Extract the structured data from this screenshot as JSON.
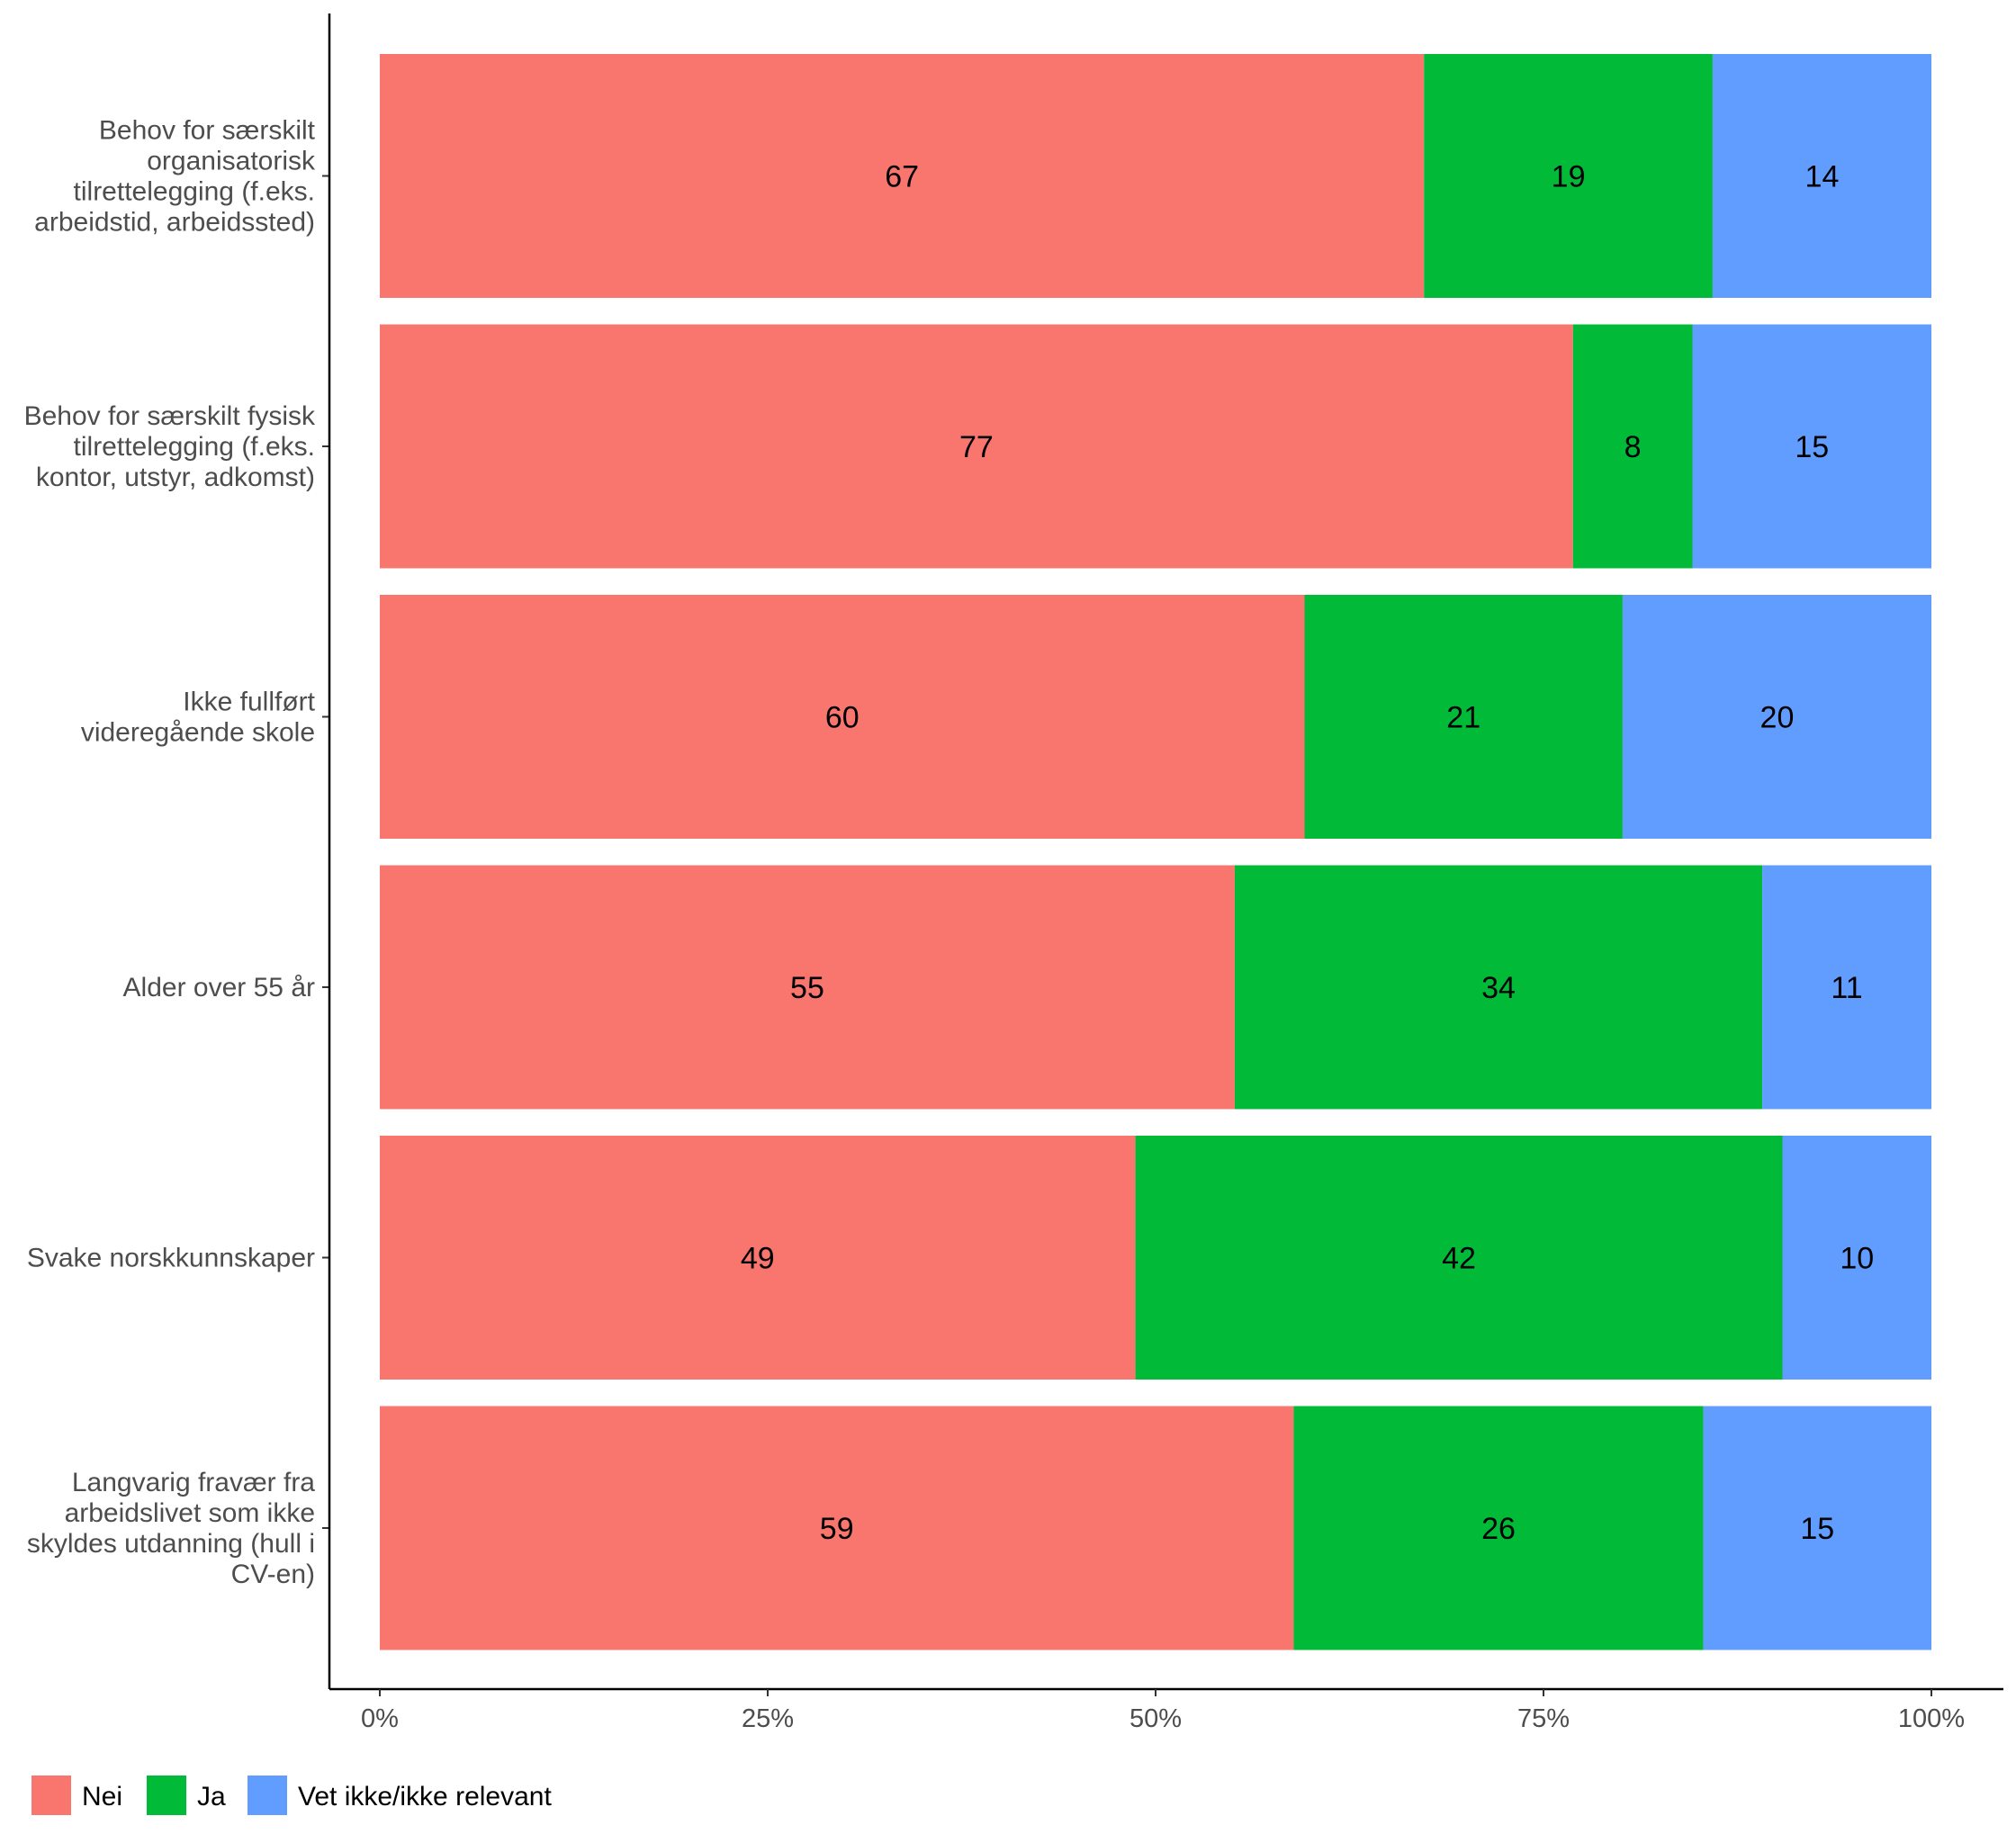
{
  "chart_data": {
    "type": "bar",
    "orientation": "horizontal",
    "stacked": true,
    "normalized": true,
    "categories": [
      "Behov for særskilt organisatorisk tilrettelegging (f.eks. arbeidstid, arbeidssted)",
      "Behov for særskilt fysisk tilrettelegging (f.eks. kontor, utstyr, adkomst)",
      "Ikke fullført videregående skole",
      "Alder over 55 år",
      "Svake norskkunnskaper",
      "Langvarig fravær fra arbeidslivet som ikke skyldes utdanning (hull i CV-en)"
    ],
    "category_lines": [
      [
        "Behov for særskilt",
        "organisatorisk",
        "tilrettelegging (f.eks.",
        "arbeidstid, arbeidssted)"
      ],
      [
        "Behov for særskilt fysisk",
        "tilrettelegging (f.eks.",
        "kontor, utstyr, adkomst)"
      ],
      [
        "Ikke fullført",
        "videregående skole"
      ],
      [
        "Alder over 55 år"
      ],
      [
        "Svake norskkunnskaper"
      ],
      [
        "Langvarig fravær fra",
        "arbeidslivet som ikke",
        "skyldes utdanning (hull i",
        "CV-en)"
      ]
    ],
    "series": [
      {
        "name": "Nei",
        "color": "#F8766D",
        "values": [
          67,
          77,
          60,
          55,
          49,
          59
        ],
        "shares": [
          0.673,
          0.769,
          0.596,
          0.551,
          0.487,
          0.589
        ]
      },
      {
        "name": "Ja",
        "color": "#00BA38",
        "values": [
          19,
          8,
          21,
          34,
          42,
          26
        ],
        "shares": [
          0.186,
          0.077,
          0.205,
          0.34,
          0.417,
          0.264
        ]
      },
      {
        "name": "Vet ikke/ikke relevant",
        "color": "#619CFF",
        "values": [
          14,
          15,
          20,
          11,
          10,
          15
        ],
        "shares": [
          0.141,
          0.154,
          0.199,
          0.109,
          0.096,
          0.147
        ]
      }
    ],
    "xticks": [
      "0%",
      "25%",
      "50%",
      "75%",
      "100%"
    ],
    "xlim": [
      0,
      1
    ],
    "title": "",
    "xlabel": "",
    "ylabel": "",
    "grid": false,
    "legend_position": "bottom-left"
  }
}
